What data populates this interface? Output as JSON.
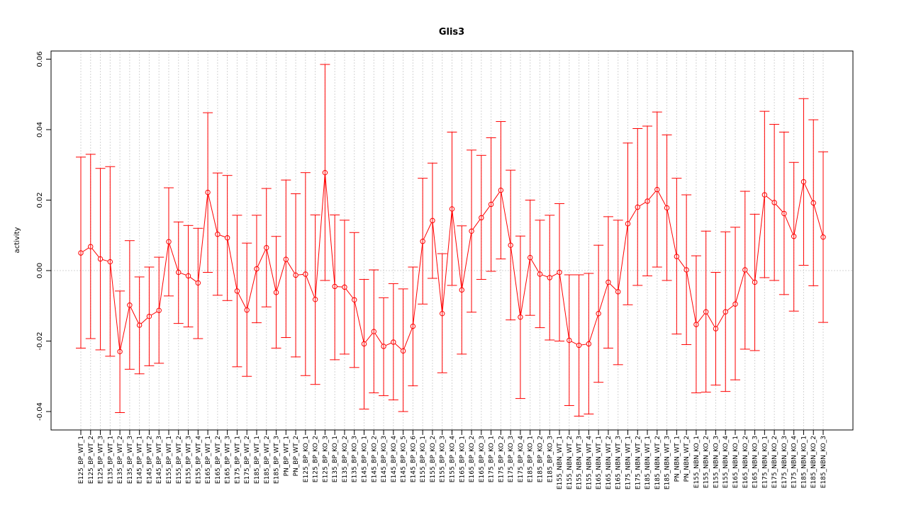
{
  "chart_data": {
    "type": "line",
    "title": "Glis3",
    "xlabel": "",
    "ylabel": "activity",
    "ylim": [
      -0.045,
      0.061
    ],
    "yticks": [
      -0.04,
      -0.02,
      0.0,
      0.02,
      0.04,
      0.06
    ],
    "ytick_labels": [
      "-0.04",
      "-0.02",
      "0.00",
      "0.02",
      "0.04",
      "0.06"
    ],
    "grid": true,
    "reference_line": 0.0,
    "series_color": "#ff0000",
    "grid_color": "#d3d3d3",
    "categories": [
      "E125_BP_WT_1",
      "E125_BP_WT_2",
      "E125_BP_WT_3",
      "E135_BP_WT_1",
      "E135_BP_WT_2",
      "E135_BP_WT_3",
      "E145_BP_WT_1",
      "E145_BP_WT_2",
      "E145_BP_WT_3",
      "E155_BP_WT_1",
      "E155_BP_WT_2",
      "E155_BP_WT_3",
      "E155_BP_WT_4",
      "E165_BP_WT_1",
      "E165_BP_WT_2",
      "E165_BP_WT_3",
      "E175_BP_WT_1",
      "E175_BP_WT_2",
      "E185_BP_WT_1",
      "E185_BP_WT_2",
      "E185_BP_WT_3",
      "PN_BP_WT_1",
      "PN_BP_WT_2",
      "E125_BP_KO_1",
      "E125_BP_KO_2",
      "E125_BP_KO_3",
      "E135_BP_KO_1",
      "E135_BP_KO_2",
      "E135_BP_KO_3",
      "E145_BP_KO_1",
      "E145_BP_KO_2",
      "E145_BP_KO_3",
      "E145_BP_KO_4",
      "E145_BP_KO_5",
      "E145_BP_KO_6",
      "E155_BP_KO_1",
      "E155_BP_KO_2",
      "E155_BP_KO_3",
      "E155_BP_KO_4",
      "E165_BP_KO_1",
      "E165_BP_KO_2",
      "E165_BP_KO_3",
      "E175_BP_KO_1",
      "E175_BP_KO_2",
      "E175_BP_KO_3",
      "E175_BP_KO_4",
      "E185_BP_KO_1",
      "E185_BP_KO_2",
      "E185_BP_KO_3",
      "E155_NBN_WT_1",
      "E155_NBN_WT_2",
      "E155_NBN_WT_3",
      "E155_NBN_WT_4",
      "E165_NBN_WT_1",
      "E165_NBN_WT_2",
      "E165_NBN_WT_3",
      "E175_NBN_WT_1",
      "E175_NBN_WT_2",
      "E185_NBN_WT_1",
      "E185_NBN_WT_2",
      "E185_NBN_WT_3",
      "PN_NBN_WT_1",
      "PN_NBN_WT_2",
      "E155_NBN_KO_1",
      "E155_NBN_KO_2",
      "E155_NBN_KO_3",
      "E155_NBN_KO_4",
      "E165_NBN_KO_1",
      "E165_NBN_KO_2",
      "E165_NBN_KO_3",
      "E175_NBN_KO_1",
      "E175_NBN_KO_2",
      "E175_NBN_KO_3",
      "E175_NBN_KO_4",
      "E185_NBN_KO_1",
      "E185_NBN_KO_2",
      "E185_NBN_KO_3"
    ],
    "values": [
      0.005,
      0.0068,
      0.0033,
      0.0025,
      -0.023,
      -0.0098,
      -0.0155,
      -0.013,
      -0.0113,
      0.0082,
      -0.0005,
      -0.0015,
      -0.0035,
      0.0222,
      0.0103,
      0.0093,
      -0.0058,
      -0.0112,
      0.0005,
      0.0065,
      -0.0062,
      0.0032,
      -0.0013,
      -0.001,
      -0.0082,
      0.0278,
      -0.0045,
      -0.0047,
      -0.0083,
      -0.0208,
      -0.0173,
      -0.0215,
      -0.0203,
      -0.0228,
      -0.0158,
      0.0083,
      0.0142,
      -0.0122,
      0.0175,
      -0.0055,
      0.0112,
      0.015,
      0.0188,
      0.0228,
      0.0072,
      -0.0132,
      0.0037,
      -0.001,
      -0.002,
      -0.0005,
      -0.0198,
      -0.0212,
      -0.0208,
      -0.0122,
      -0.0033,
      -0.006,
      0.0133,
      0.018,
      0.0197,
      0.023,
      0.0178,
      0.004,
      0.0002,
      -0.0153,
      -0.0117,
      -0.0165,
      -0.0117,
      -0.0095,
      0.0002,
      -0.0033,
      0.0215,
      0.0193,
      0.0162,
      0.0097,
      0.0252,
      0.0192,
      0.0095
    ],
    "upper": [
      0.0322,
      0.033,
      0.029,
      0.0295,
      -0.0058,
      0.0085,
      -0.0018,
      0.001,
      0.0038,
      0.0235,
      0.0138,
      0.0128,
      0.012,
      0.0448,
      0.0277,
      0.027,
      0.0157,
      0.0078,
      0.0157,
      0.0233,
      0.0097,
      0.0257,
      0.0218,
      0.0278,
      0.0158,
      0.0585,
      0.0158,
      0.0143,
      0.0108,
      -0.0025,
      0.0002,
      -0.0077,
      -0.0037,
      -0.0052,
      0.001,
      0.0262,
      0.0305,
      0.0048,
      0.0393,
      0.0127,
      0.0342,
      0.0327,
      0.0377,
      0.0423,
      0.0285,
      0.0098,
      0.02,
      0.0143,
      0.0157,
      0.019,
      -0.0012,
      -0.0012,
      -0.0008,
      0.0072,
      0.0153,
      0.0143,
      0.0362,
      0.0403,
      0.041,
      0.045,
      0.0385,
      0.0262,
      0.0215,
      0.0042,
      0.0112,
      -0.0005,
      0.011,
      0.0123,
      0.0225,
      0.016,
      0.0452,
      0.0415,
      0.0393,
      0.0307,
      0.0488,
      0.0428,
      0.0337
    ],
    "lower": [
      -0.022,
      -0.0193,
      -0.0225,
      -0.0243,
      -0.0403,
      -0.028,
      -0.0293,
      -0.027,
      -0.0263,
      -0.0072,
      -0.015,
      -0.016,
      -0.0193,
      -0.0005,
      -0.007,
      -0.0085,
      -0.0273,
      -0.03,
      -0.0148,
      -0.0103,
      -0.022,
      -0.019,
      -0.0245,
      -0.0298,
      -0.0323,
      -0.0028,
      -0.0253,
      -0.0237,
      -0.0275,
      -0.0393,
      -0.0347,
      -0.0355,
      -0.0367,
      -0.04,
      -0.0327,
      -0.0095,
      -0.0022,
      -0.029,
      -0.0042,
      -0.0237,
      -0.0118,
      -0.0025,
      -0.0002,
      0.0033,
      -0.014,
      -0.0363,
      -0.0127,
      -0.0162,
      -0.0197,
      -0.02,
      -0.0383,
      -0.0413,
      -0.0407,
      -0.0317,
      -0.022,
      -0.0267,
      -0.0097,
      -0.0042,
      -0.0015,
      0.001,
      -0.0028,
      -0.018,
      -0.021,
      -0.0347,
      -0.0345,
      -0.0325,
      -0.0343,
      -0.031,
      -0.0223,
      -0.0227,
      -0.002,
      -0.0028,
      -0.0068,
      -0.0115,
      0.0015,
      -0.0043,
      -0.0147
    ]
  }
}
